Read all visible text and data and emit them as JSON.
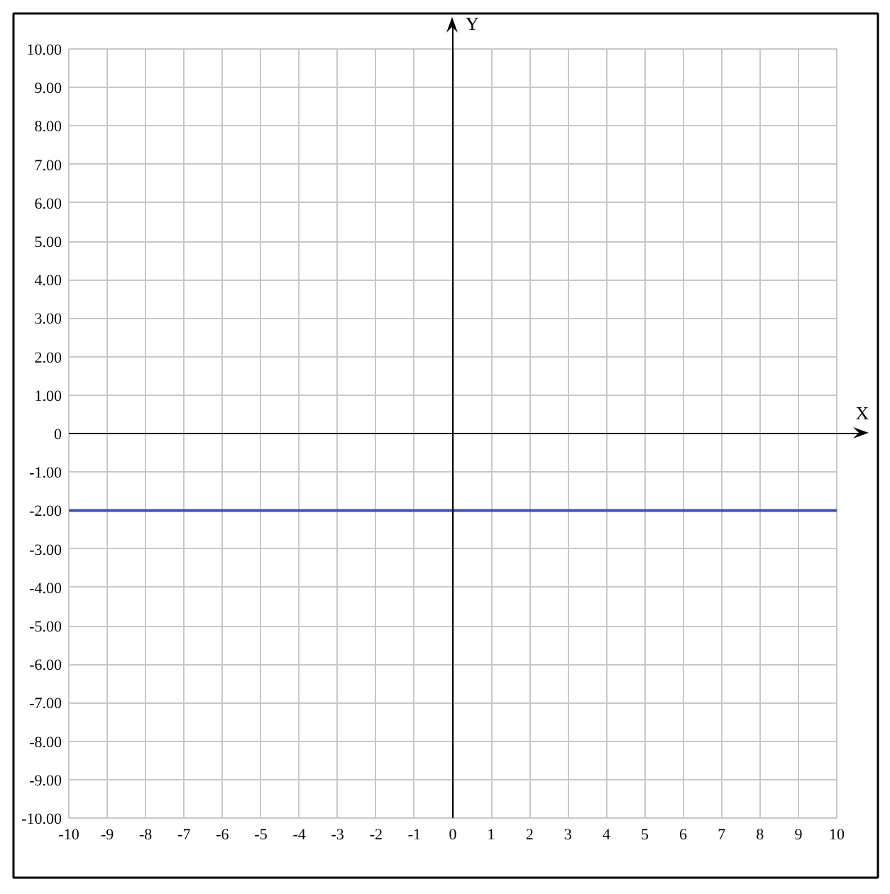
{
  "chart_data": {
    "type": "line",
    "xlabel": "X",
    "ylabel": "Y",
    "x": [
      -10,
      10
    ],
    "series": [
      {
        "color": "#3d50b4",
        "values": [
          -2,
          -2
        ]
      }
    ],
    "xlim": [
      -10,
      10
    ],
    "ylim": [
      -10,
      10
    ],
    "xticks": [
      -10,
      -9,
      -8,
      -7,
      -6,
      -5,
      -4,
      -3,
      -2,
      -1,
      0,
      1,
      2,
      3,
      4,
      5,
      6,
      7,
      8,
      9,
      10
    ],
    "yticks": [
      {
        "value": 10,
        "label": "10.00"
      },
      {
        "value": 9,
        "label": "9.00"
      },
      {
        "value": 8,
        "label": "8.00"
      },
      {
        "value": 7,
        "label": "7.00"
      },
      {
        "value": 6,
        "label": "6.00"
      },
      {
        "value": 5,
        "label": "5.00"
      },
      {
        "value": 4,
        "label": "4.00"
      },
      {
        "value": 3,
        "label": "3.00"
      },
      {
        "value": 2,
        "label": "2.00"
      },
      {
        "value": 1,
        "label": "1.00"
      },
      0,
      {
        "value": -1,
        "label": "-1.00"
      },
      {
        "value": -2,
        "label": "-2.00"
      },
      {
        "value": -3,
        "label": "-3.00"
      },
      {
        "value": -4,
        "label": "-4.00"
      },
      {
        "value": -5,
        "label": "-5.00"
      },
      {
        "value": -6,
        "label": "-6.00"
      },
      {
        "value": -7,
        "label": "-7.00"
      },
      {
        "value": -8,
        "label": "-8.00"
      },
      {
        "value": -9,
        "label": "-9.00"
      },
      {
        "value": -10,
        "label": "-10.00"
      }
    ],
    "grid": true
  }
}
